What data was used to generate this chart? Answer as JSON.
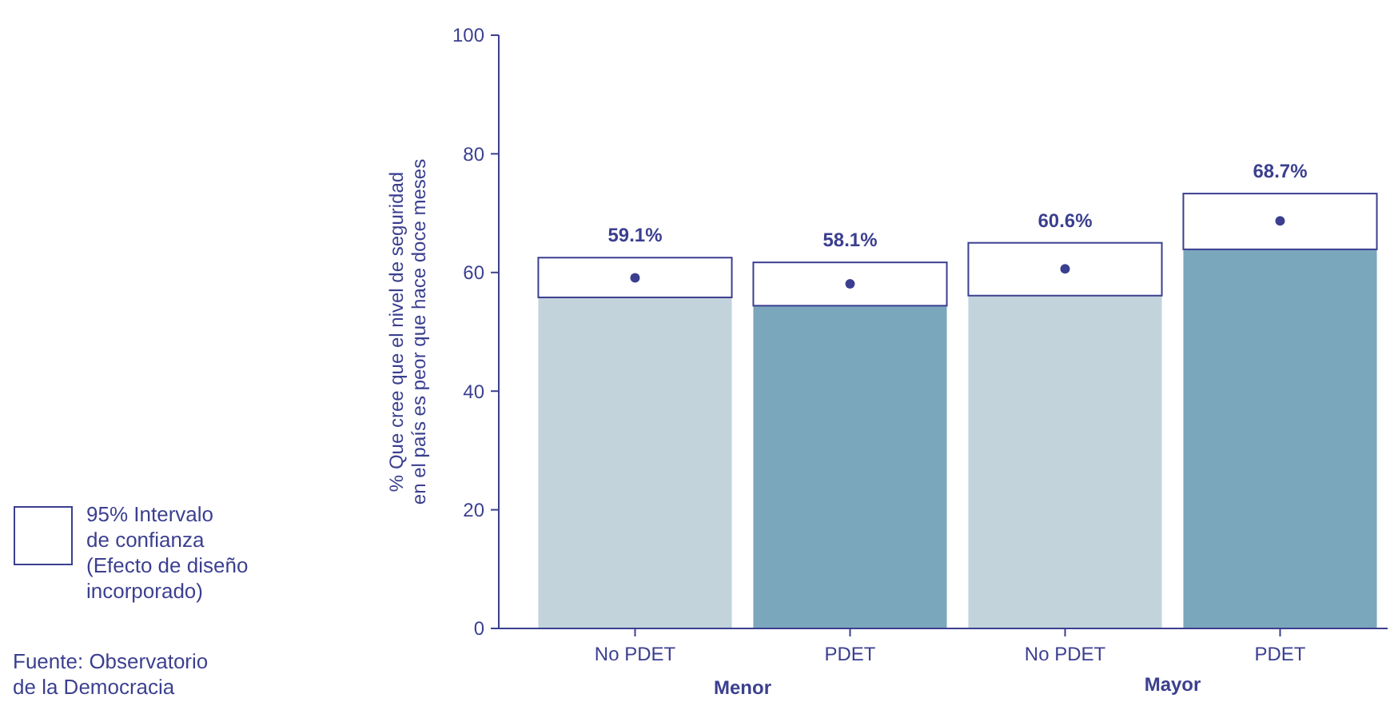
{
  "chart_data": {
    "type": "bar",
    "stacked": true,
    "categories": [
      "No PDET",
      "PDET",
      "No PDET",
      "PDET"
    ],
    "ylabel": "% Que cree que el nivel de seguridad\nen el país es peor que hace doce meses",
    "ylim": [
      0,
      100
    ],
    "yticks": [
      0,
      20,
      40,
      60,
      80,
      100
    ],
    "legend": "left",
    "series": [
      {
        "colors": [
          "#c2d3dc",
          "#7ba7bd",
          "#c2d3dc",
          "#7ba7bd"
        ],
        "values": [
          55.8,
          54.4,
          56.1,
          63.9
        ]
      },
      {
        "name": "95% Intervalo\nde confianza\n(Efecto de diseño\nincorporado)",
        "color": "#ffffff",
        "values": [
          6.7,
          7.3,
          8.9,
          9.4
        ]
      },
      {
        "type": "scatter",
        "color": "#3b3f8f",
        "marker": "circle",
        "values": [
          59.1,
          58.1,
          60.6,
          68.7
        ],
        "value_labels": [
          "59.1%",
          "58.1%",
          "60.6%",
          "68.7%"
        ]
      }
    ],
    "annotations": [
      "Menor",
      "Mayor",
      "Fuente: Observatorio de la Democracia"
    ]
  }
}
